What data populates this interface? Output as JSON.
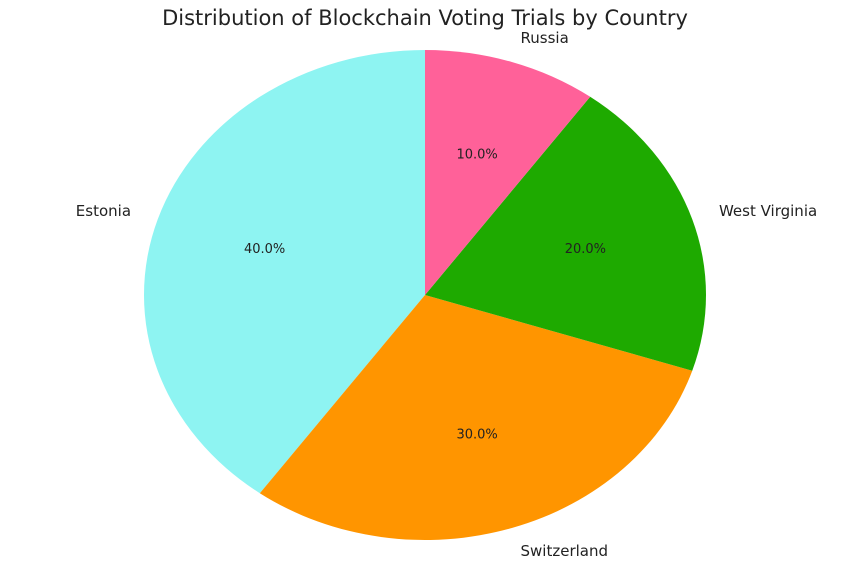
{
  "chart_data": {
    "type": "pie",
    "title": "Distribution of Blockchain Voting Trials by Country",
    "categories": [
      "Estonia",
      "Switzerland",
      "West Virginia",
      "Russia"
    ],
    "values": [
      40,
      30,
      20,
      10
    ],
    "value_labels": [
      "40.0%",
      "30.0%",
      "20.0%",
      "10.0%"
    ],
    "colors": [
      "#8ef4f2",
      "#ff9500",
      "#1eaa00",
      "#ff6199"
    ]
  }
}
